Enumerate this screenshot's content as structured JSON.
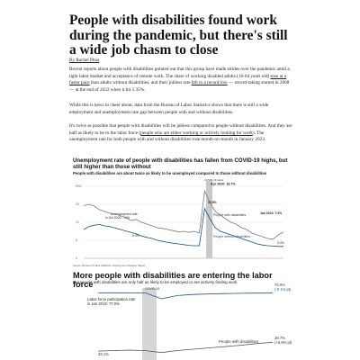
{
  "article": {
    "headline": "People with disabilities found work during the pandemic, but there's still a wide job chasm to close",
    "byline": "By Rachel Phua",
    "p1_a": "Recent reports about people with disabilities pointed out that this group have made strides over the pandemic amid a tight labor market and acceptance of remote work. The share of working disabled adults (16-64 years old) ",
    "p1_link1": "rose at a faster pace",
    "p1_b": " than adults without disabilities, and their jobless rate ",
    "p1_link2": "fell to a record low",
    "p1_c": " — record-taking started in 2008 — at the end of 2022 when it hit 5.35%.",
    "p2": "While this is news to cheer about, data from the Bureau of Labor Statistics shows that there is still a wide employment and unemployment rate gap between people with and without disabilities.",
    "p3_a": "It's twice as possible that people with disabilities will be jobless compared to people without disabilities. And they are half as likely to be in the labor force (",
    "p3_link": "people who are either working or actively looking for work",
    "p3_b": "). The unemployment rate for both people with and without disabilities rose month-on-month in January 2023."
  },
  "charts": {
    "unemployment": {
      "title": "Unemployment rate of people with disabilities has fallen from COVID-19 highs, but still higher than those without",
      "subtitle": "People with disabilities are about twice as likely to be unemployed compared to those without disabilities",
      "covid_label": "COVID-19 starts",
      "peak_label": "Apr 2020: 18.7%",
      "oct_label_1": "Unemployment rate",
      "oct_label_2": "in Oct 2020: 7.8%",
      "label_with": "People with disabilities",
      "label_without": "People without disabilities",
      "end_with": "Jan 2023: 7.3%",
      "early_value": "13.9%",
      "low_value": "5.3%",
      "end_value": "3.3%",
      "source": "Source: Bureau of Labor Statistics, Employment Situation Report"
    },
    "labor_force": {
      "title": "More people with disabilities are entering the labor force",
      "subtitle": "But people with disabilities are only half as likely to be employed or are actively finding work",
      "covid_label": "COVID-19",
      "lfp_label_1": "Labor force participation rate",
      "lfp_label_2": "in Jan 2019: 77.0%",
      "without_end_1": "76.9%",
      "without_end_2": "(-0.1% pt)",
      "label_with": "People with disabilities",
      "with_end_1": "39.7%",
      "with_end_2": "(+6.6% pt)",
      "with_start": "33.1%"
    }
  },
  "chart_data": [
    {
      "type": "line",
      "title": "Unemployment rate of people with disabilities has fallen from COVID-19 highs, but still higher than those without",
      "ylim": [
        0,
        20
      ],
      "y_ticks": [
        "20%",
        "15",
        "10",
        "5",
        "0"
      ],
      "annotations": [
        "COVID-19 starts",
        "Apr 2020: 18.7%",
        "Jan 2023: 7.3%"
      ],
      "series": [
        {
          "name": "People with disabilities",
          "color": "#7a7a7a",
          "values": [
            14.6,
            15.0,
            14.5,
            13.5,
            13.0,
            12.5,
            12.3,
            11.8,
            11.3,
            10.5,
            10.8,
            10.0,
            9.5,
            9.0,
            8.5,
            8.3,
            8.0,
            7.7,
            7.3,
            7.5,
            7.2,
            7.5,
            7.0,
            18.7,
            15.5,
            13.0,
            12.0,
            11.0,
            10.0,
            9.5,
            8.5,
            8.0,
            7.0,
            6.5,
            6.0,
            5.5,
            5.3,
            6.5,
            7.3
          ]
        },
        {
          "name": "People without disabilities",
          "color": "#1a4f8a",
          "values": [
            8.0,
            8.8,
            9.2,
            9.4,
            9.0,
            8.8,
            8.4,
            8.0,
            7.6,
            7.2,
            6.8,
            6.2,
            5.8,
            5.5,
            5.0,
            4.7,
            4.4,
            4.2,
            4.0,
            3.8,
            3.6,
            3.5,
            3.5,
            13.8,
            11.0,
            8.5,
            7.5,
            7.0,
            6.5,
            6.0,
            5.5,
            5.0,
            4.5,
            4.0,
            3.7,
            3.5,
            3.4,
            3.3,
            3.3
          ]
        }
      ]
    },
    {
      "type": "line",
      "title": "More people with disabilities are entering the labor force",
      "y_unit": "percent",
      "series": [
        {
          "name": "People without disabilities",
          "color": "#1a4f8a",
          "values": [
            77.0,
            77.1,
            77.0,
            76.9,
            72.5,
            75.0,
            75.8,
            76.2,
            76.5,
            76.7,
            76.8,
            76.9
          ]
        },
        {
          "name": "People with disabilities",
          "color": "#555555",
          "values": [
            33.1,
            33.5,
            33.8,
            33.4,
            32.0,
            33.5,
            34.5,
            35.5,
            36.5,
            37.5,
            38.8,
            39.7
          ]
        }
      ]
    }
  ]
}
